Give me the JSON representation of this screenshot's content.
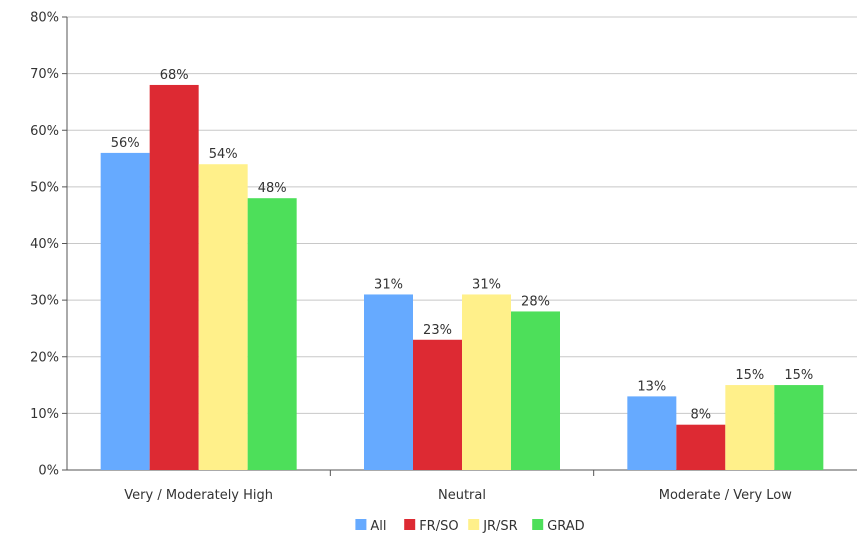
{
  "chart_data": {
    "type": "bar",
    "title": "",
    "xlabel": "",
    "ylabel": "",
    "categories": [
      "Very / Moderately High",
      "Neutral",
      "Moderate / Very Low"
    ],
    "series": [
      {
        "name": "All",
        "values": [
          56,
          31,
          13
        ],
        "labels": [
          "56%",
          "31%",
          "13%"
        ],
        "color": "#66aaff"
      },
      {
        "name": "FR/SO",
        "values": [
          68,
          23,
          8
        ],
        "labels": [
          "68%",
          "23%",
          "8%"
        ],
        "color": "#dd2a33"
      },
      {
        "name": "JR/SR",
        "values": [
          54,
          31,
          15
        ],
        "labels": [
          "54%",
          "31%",
          "15%"
        ],
        "color": "#fff08a"
      },
      {
        "name": "GRAD",
        "values": [
          48,
          28,
          15
        ],
        "labels": [
          "48%",
          "28%",
          "15%"
        ],
        "color": "#4ddf5a"
      }
    ],
    "ylim": [
      0,
      80
    ],
    "yticks": [
      "0%",
      "10%",
      "20%",
      "30%",
      "40%",
      "50%",
      "60%",
      "70%",
      "80%"
    ],
    "grid": true,
    "legend_position": "bottom"
  }
}
